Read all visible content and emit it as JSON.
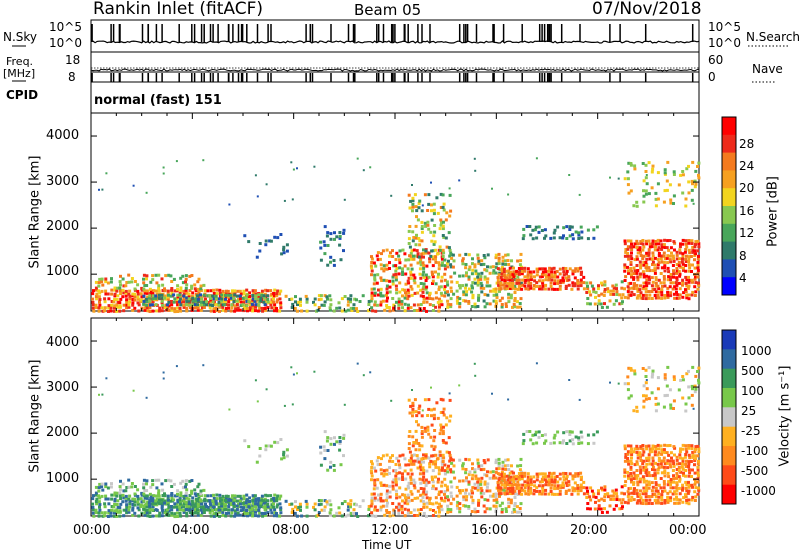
{
  "header": {
    "station": "Rankin Inlet (fitACF)",
    "beam": "Beam 05",
    "date": "07/Nov/2018"
  },
  "noise_panel": {
    "left_label": "N.Sky",
    "right_label": "N.Search",
    "left_top": "10^5",
    "left_bottom": "10^0",
    "right_top": "10^5",
    "right_bottom": "10^0"
  },
  "freq_panel": {
    "left_label_1": "Freq.",
    "left_label_2": "[MHz]",
    "left_top": "18",
    "left_bottom": "8",
    "right_top": "60",
    "right_bottom": "0",
    "right_label": "Nave"
  },
  "cpid": {
    "label": "CPID",
    "value": "normal (fast) 151"
  },
  "colors": {
    "power": [
      "#0000ff",
      "#1f4fb4",
      "#2f7a6a",
      "#48a65a",
      "#88c850",
      "#f2d41f",
      "#f6a020",
      "#f47a1e",
      "#ee2a1a",
      "#ff0000"
    ],
    "velocity": [
      "#ff0000",
      "#ff4a18",
      "#ff8a1e",
      "#ffb020",
      "#c8c8c8",
      "#78c84a",
      "#3a9a5a",
      "#2f6aa0",
      "#1a3ab8"
    ]
  },
  "chart_data": [
    {
      "type": "heatmap",
      "name": "power",
      "ylabel": "Slant Range [km]",
      "yticks": [
        "1000",
        "2000",
        "3000",
        "4000"
      ],
      "ylim": [
        200,
        4500
      ],
      "colorbar_label": "Power [dB]",
      "colorbar_ticks": [
        "4",
        "8",
        "12",
        "16",
        "20",
        "24",
        "28"
      ]
    },
    {
      "type": "heatmap",
      "name": "velocity",
      "ylabel": "Slant Range [km]",
      "yticks": [
        "1000",
        "2000",
        "3000",
        "4000"
      ],
      "ylim": [
        200,
        4500
      ],
      "colorbar_label": "Velocity [m s⁻¹]",
      "colorbar_ticks": [
        "1000",
        "500",
        "100",
        "25",
        "-25",
        "-100",
        "-500",
        "-1000"
      ]
    }
  ],
  "x_axis": {
    "label": "Time UT",
    "ticks": [
      "00:00",
      "04:00",
      "08:00",
      "12:00",
      "16:00",
      "20:00",
      "00:00"
    ]
  }
}
